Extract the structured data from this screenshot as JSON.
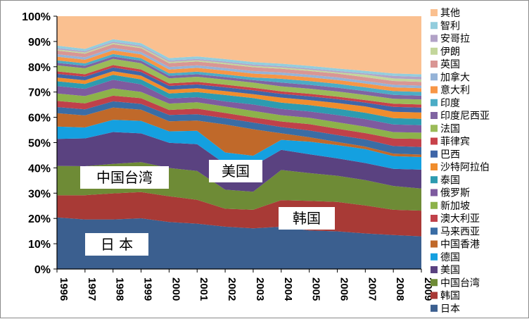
{
  "chart_data": {
    "type": "area",
    "stacked": true,
    "percent": true,
    "x": [
      "1996",
      "1997",
      "1998",
      "1999",
      "2000",
      "2001",
      "2002",
      "2003",
      "2004",
      "2005",
      "2006",
      "2007",
      "2008",
      "2009"
    ],
    "ylim": [
      0,
      100
    ],
    "yticks": [
      "0%",
      "10%",
      "20%",
      "30%",
      "40%",
      "50%",
      "60%",
      "70%",
      "80%",
      "90%",
      "100%"
    ],
    "legend_position": "right",
    "series": [
      {
        "name": "日本",
        "color": "#3B5F8F",
        "values": [
          21,
          20.5,
          20.2,
          20.3,
          18.6,
          17.8,
          16.5,
          15.8,
          16.8,
          15.2,
          14.7,
          14.0,
          13.4,
          13.0
        ]
      },
      {
        "name": "韩国",
        "color": "#A83A36",
        "values": [
          9,
          10,
          10.6,
          10.5,
          10.2,
          9.4,
          7.0,
          7.2,
          10.6,
          11.7,
          11.5,
          11.0,
          10.0,
          10.2
        ]
      },
      {
        "name": "中国台湾",
        "color": "#6E8B36",
        "values": [
          12,
          12,
          12,
          12,
          11.2,
          11.3,
          7.4,
          7.0,
          12.0,
          11.0,
          10.2,
          10.0,
          9.4,
          8.8
        ]
      },
      {
        "name": "美国",
        "color": "#5A4280",
        "values": [
          11,
          11.5,
          13,
          11.5,
          10,
          10.5,
          10,
          10,
          8,
          7.4,
          6.8,
          6.7,
          6.8,
          7.5
        ]
      },
      {
        "name": "德国",
        "color": "#14A0E0",
        "values": [
          5,
          4.5,
          5,
          5,
          4.5,
          5.3,
          4.5,
          4,
          4,
          5,
          5.2,
          5.5,
          5,
          5
        ]
      },
      {
        "name": "中国香港",
        "color": "#C0692A",
        "values": [
          5.5,
          5,
          5,
          4.5,
          4,
          4,
          10.9,
          10.3,
          2.6,
          1.7,
          1.2,
          1,
          1,
          1
        ]
      },
      {
        "name": "马来西亚",
        "color": "#3A6DA5",
        "values": [
          2.5,
          2.5,
          2.5,
          2.3,
          2.5,
          2.5,
          2.5,
          2.6,
          2.5,
          2.7,
          2.7,
          2.8,
          3,
          3
        ]
      },
      {
        "name": "澳大利亚",
        "color": "#C0414A",
        "values": [
          2.5,
          2.5,
          2.3,
          2.3,
          2,
          2.2,
          2,
          2,
          2.2,
          2.5,
          2.5,
          2.5,
          3,
          3.2
        ]
      },
      {
        "name": "新加坡",
        "color": "#8DB24A",
        "values": [
          3,
          3,
          3,
          2.5,
          2.5,
          2.5,
          2.5,
          2.5,
          2.5,
          2.5,
          2.5,
          2.5,
          2.5,
          2.5
        ]
      },
      {
        "name": "俄罗斯",
        "color": "#7E5B9F",
        "values": [
          3,
          3,
          3.5,
          3,
          2,
          2,
          2,
          2.5,
          2.5,
          2.5,
          2.8,
          3,
          3,
          3
        ]
      },
      {
        "name": "泰国",
        "color": "#2D9BB0",
        "values": [
          2,
          2,
          2,
          2,
          2,
          2,
          2.5,
          2.5,
          2.5,
          2.5,
          2.5,
          2.5,
          2.5,
          2.5
        ]
      },
      {
        "name": "沙特阿拉伯",
        "color": "#F08D2D",
        "values": [
          1.5,
          1.5,
          1.5,
          1.5,
          1.5,
          1.5,
          1.5,
          1.5,
          2,
          2,
          2.2,
          2.5,
          2.5,
          2.5
        ]
      },
      {
        "name": "巴西",
        "color": "#3F66A8",
        "values": [
          1.5,
          1.5,
          1.5,
          1.5,
          1.5,
          1.5,
          1.5,
          1.5,
          1.5,
          1.5,
          1.5,
          1.5,
          2,
          2
        ]
      },
      {
        "name": "菲律宾",
        "color": "#C8424A",
        "values": [
          1,
          1,
          1,
          1,
          1,
          1,
          1,
          1,
          1,
          1,
          1,
          1,
          1.2,
          1.2
        ]
      },
      {
        "name": "法国",
        "color": "#9BBB59",
        "values": [
          2.5,
          2.5,
          2.5,
          2.5,
          2,
          2,
          2,
          2,
          2,
          2,
          2,
          2,
          2,
          2
        ]
      },
      {
        "name": "印度尼西亚",
        "color": "#8064A2",
        "values": [
          1,
          1,
          1,
          1,
          1,
          1,
          1,
          1,
          1.5,
          1.5,
          1.5,
          1.5,
          1.5,
          1.5
        ]
      },
      {
        "name": "印度",
        "color": "#4BACC6",
        "values": [
          1,
          1,
          1,
          1,
          1,
          1,
          1,
          1,
          1.5,
          1.5,
          1.5,
          1.5,
          1.5,
          1.5
        ]
      },
      {
        "name": "意大利",
        "color": "#F79646",
        "values": [
          1.5,
          1.5,
          1.5,
          1.5,
          1.5,
          1.5,
          1.5,
          1.5,
          1.5,
          1.5,
          1.5,
          1.5,
          1.5,
          1.5
        ]
      },
      {
        "name": "加拿大",
        "color": "#95B3D7",
        "values": [
          1,
          1,
          1,
          1,
          1,
          1,
          1,
          1,
          1,
          1,
          1,
          1,
          1,
          1
        ]
      },
      {
        "name": "英国",
        "color": "#D99694",
        "values": [
          1.5,
          1.5,
          1.5,
          1.5,
          1.5,
          1.5,
          1.5,
          1.5,
          1.5,
          1.5,
          1.5,
          1.5,
          1.5,
          1.5
        ]
      },
      {
        "name": "伊朗",
        "color": "#C3D69B",
        "values": [
          0.5,
          0.5,
          0.5,
          0.5,
          0.5,
          0.5,
          0.5,
          0.5,
          0.5,
          0.5,
          0.5,
          1,
          1,
          1
        ]
      },
      {
        "name": "安哥拉",
        "color": "#B2A2C7",
        "values": [
          0.5,
          0.5,
          0.5,
          0.5,
          0.5,
          0.5,
          0.5,
          0.5,
          0.5,
          0.5,
          0.5,
          0.5,
          1,
          1
        ]
      },
      {
        "name": "智利",
        "color": "#93CDDD",
        "values": [
          1,
          1,
          1,
          1,
          1,
          1,
          1,
          1,
          1,
          1,
          1,
          1,
          1,
          1
        ]
      },
      {
        "name": "其他",
        "color": "#FAC090",
        "values": [
          12,
          13.5,
          9.4,
          10.8,
          16.6,
          15.8,
          16.7,
          17.8,
          18.9,
          19.6,
          20.4,
          21.5,
          22.6,
          23.1
        ]
      }
    ],
    "annotations": [
      {
        "text": "日  本",
        "series": "日本"
      },
      {
        "text": "韩国",
        "series": "韩国"
      },
      {
        "text": "中国台湾",
        "series": "中国台湾"
      },
      {
        "text": "美国",
        "series": "美国"
      }
    ]
  }
}
